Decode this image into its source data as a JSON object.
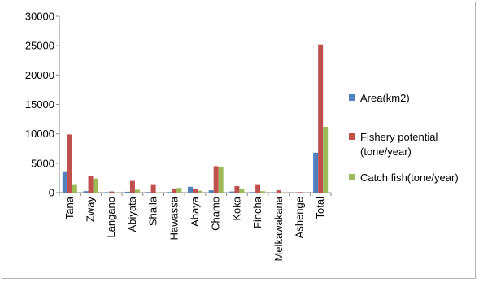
{
  "chart_data": {
    "type": "bar",
    "categories": [
      "Tana",
      "Zway",
      "Langano",
      "Abiyata",
      "Shalla",
      "Hawassa",
      "Abaya",
      "Chamo",
      "Koka",
      "Fincha",
      "Melkawakana",
      "Ashenge",
      "Total"
    ],
    "series": [
      {
        "name": "Area(km2)",
        "color": "#4f81bd",
        "values": [
          3500,
          250,
          80,
          150,
          100,
          100,
          1000,
          400,
          200,
          100,
          50,
          20,
          6800
        ]
      },
      {
        "name": "Fishery potential (tone/year)",
        "color": "#c0504d",
        "values": [
          9900,
          2900,
          200,
          2000,
          1300,
          700,
          600,
          4500,
          1100,
          1300,
          400,
          100,
          25200
        ]
      },
      {
        "name": "Catch fish(tone/year)",
        "color": "#9bbb59",
        "values": [
          1300,
          2400,
          50,
          500,
          50,
          800,
          350,
          4300,
          600,
          250,
          50,
          20,
          11200
        ]
      }
    ],
    "y_ticks": [
      "0",
      "5000",
      "10000",
      "15000",
      "20000",
      "25000",
      "30000"
    ],
    "ylim": [
      0,
      30000
    ],
    "grid": false,
    "legend_position": "right"
  }
}
